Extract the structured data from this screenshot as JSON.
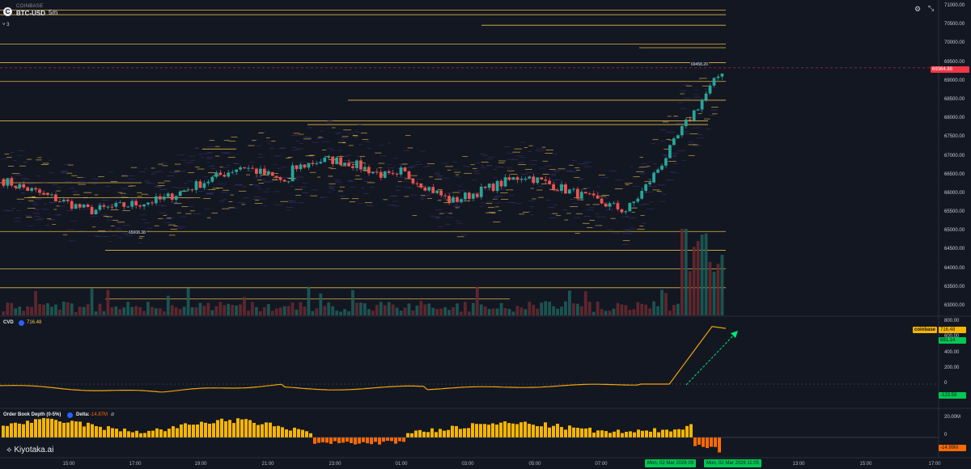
{
  "header": {
    "exchange": "COINBASE",
    "symbol": "BTC-USD",
    "timeframe": "5m",
    "indicator_toggle": "˅ 3",
    "logo_glyph": "C"
  },
  "price_axis": {
    "ticks": [
      "71000.00",
      "70500.00",
      "70000.00",
      "69500.00",
      "69000.00",
      "68500.00",
      "68000.00",
      "67500.00",
      "67000.00",
      "66500.00",
      "66000.00",
      "65500.00",
      "65000.00",
      "64500.00",
      "64000.00",
      "63500.00",
      "63000.00"
    ],
    "current_price": "69364.88",
    "current_color": "#f23645"
  },
  "annotations": {
    "high": "69458.20",
    "low": "65008.38"
  },
  "cvd": {
    "label": "CVD",
    "value": "716.48",
    "value_color": "#f7c948",
    "ticks": [
      "800.00",
      "600.00",
      "400.00",
      "200.00",
      "0"
    ],
    "exchange_tag": "coinbase",
    "tag_value": "716.48",
    "tag_green": "691.14",
    "tag_red": "-123.58"
  },
  "order_book": {
    "label": "Order Book Depth (0-5%)",
    "delta_label": "Delta:",
    "delta_value": "-14.87M",
    "delta_color": "#ff6a00",
    "ticks": [
      "20.00M",
      "0"
    ],
    "tag_value": "-14.99M"
  },
  "time_axis": {
    "labels": [
      "15:00",
      "17:00",
      "19:00",
      "21:00",
      "23:00",
      "01:00",
      "03:00",
      "05:00",
      "07:00",
      "11:00",
      "13:00",
      "15:00",
      "17:00"
    ],
    "crosshair_left": "Mon, 02 Mar 2026 09",
    "crosshair_right": "Mon, 02 Mar 2026 11:05"
  },
  "branding": {
    "name": "Kiyotaka.ai"
  },
  "toolbar": {
    "settings_icon": "settings-icon",
    "collapse_icon": "collapse-icon"
  },
  "colors": {
    "up": "#26a69a",
    "down": "#ef5350",
    "level": "#f7c948",
    "cvd_line": "#f0a30a",
    "depth_pos": "#f7b500",
    "depth_neg": "#ff6a00"
  }
}
